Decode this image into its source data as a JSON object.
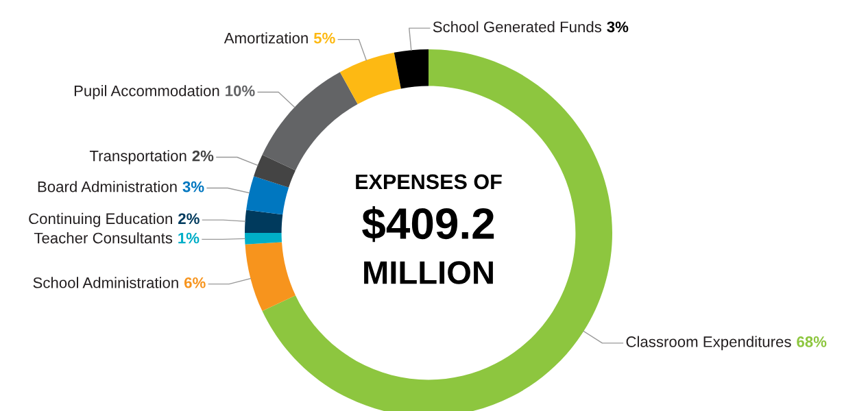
{
  "chart_data": {
    "type": "donut",
    "categories": [
      "Classroom Expenditures",
      "School Administration",
      "Teacher Consultants",
      "Continuing Education",
      "Board Administration",
      "Transportation",
      "Pupil Accommodation",
      "Amortization",
      "School Generated Funds"
    ],
    "values": [
      68,
      6,
      1,
      2,
      3,
      2,
      10,
      5,
      3
    ],
    "value_labels": [
      "68%",
      "6%",
      "1%",
      "2%",
      "3%",
      "2%",
      "10%",
      "5%",
      "3%"
    ],
    "colors": [
      "#8dc63f",
      "#f7941d",
      "#00aec7",
      "#003a5d",
      "#0077c0",
      "#444444",
      "#636466",
      "#fdb913",
      "#000000"
    ],
    "annotations": [
      "EXPENSES OF",
      "$409.2",
      "MILLION"
    ],
    "legend": false
  }
}
